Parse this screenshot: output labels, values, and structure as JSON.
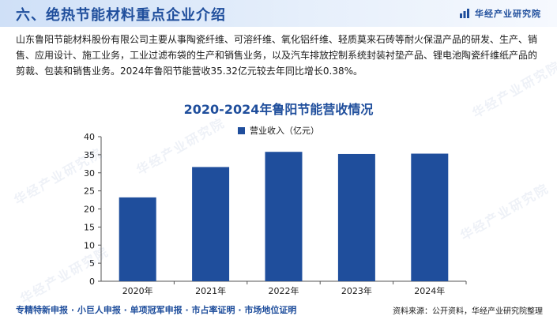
{
  "header": {
    "title": "六、绝热节能材料重点企业介绍",
    "brand": "华经产业研究院",
    "brand_icon": "bar-chart-logo-icon"
  },
  "intro": "山东鲁阳节能材料股份有限公司主要从事陶瓷纤维、可溶纤维、氧化铝纤维、轻质莫来石砖等耐火保温产品的研发、生产、销售、应用设计、施工业务，工业过滤布袋的生产和销售业务，以及汽车排放控制系统封装衬垫产品、锂电池陶瓷纤维纸产品的剪裁、包装和销售业务。2024年鲁阳节能营收35.32亿元较去年同比增长0.38%。",
  "chart_data": {
    "type": "bar",
    "title": "2020-2024年鲁阳节能营收情况",
    "categories": [
      "2020年",
      "2021年",
      "2022年",
      "2023年",
      "2024年"
    ],
    "series": [
      {
        "name": "营业收入（亿元）",
        "values": [
          23.2,
          31.6,
          35.8,
          35.2,
          35.3
        ]
      }
    ],
    "ylim": [
      0,
      40
    ],
    "yticks": [
      0,
      5,
      10,
      15,
      20,
      25,
      30,
      35,
      40
    ],
    "legend": "top-center",
    "grid": false,
    "bar_color": "#1f4e9c"
  },
  "footer": {
    "links": "专精特新申报 · 小巨人申报 · 单项冠军申报 · 市占率证明 · 市场地位证明",
    "source": "资料来源：公开资料，华经产业研究院整理"
  }
}
